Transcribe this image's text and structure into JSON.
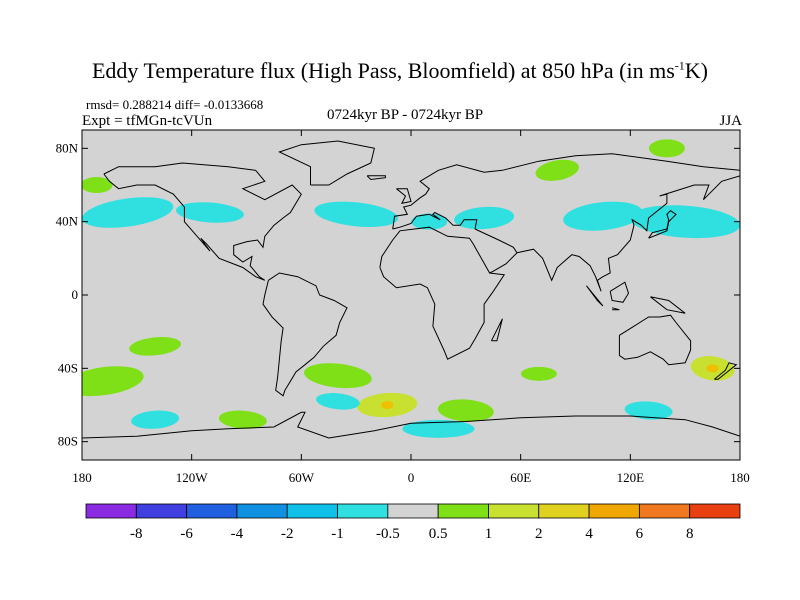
{
  "title": {
    "main": "Eddy Temperature flux (High Pass, Bloomfield) at 850 hPa (in ms",
    "exp": "-1",
    "tail": "K)"
  },
  "stats": "rmsd= 0.288214 diff= -0.0133668",
  "expt": "Expt = tfMGn-tcVUn",
  "period": "0724kyr BP - 0724kyr BP",
  "season": "JJA",
  "axes": {
    "y_ticks": [
      {
        "label": "80N",
        "lat": 80
      },
      {
        "label": "40N",
        "lat": 40
      },
      {
        "label": "0",
        "lat": 0
      },
      {
        "label": "40S",
        "lat": -40
      },
      {
        "label": "80S",
        "lat": -80
      }
    ],
    "x_ticks": [
      {
        "label": "180",
        "lon": -180
      },
      {
        "label": "120W",
        "lon": -120
      },
      {
        "label": "60W",
        "lon": -60
      },
      {
        "label": "0",
        "lon": 0
      },
      {
        "label": "60E",
        "lon": 60
      },
      {
        "label": "120E",
        "lon": 120
      },
      {
        "label": "180",
        "lon": 180
      }
    ],
    "lat_range": [
      -90,
      90
    ],
    "lon_range": [
      -180,
      180
    ]
  },
  "colors": {
    "background_field": "#d3d3d3",
    "neg_small": "#30e0e0",
    "neg_mid": "#1ec8f0",
    "pos_small": "#7fe018",
    "pos_mid": "#c8e030",
    "pos_high": "#f0c000",
    "coast": "#000000"
  },
  "colorbar": {
    "colors": [
      "#8a2be2",
      "#4040e0",
      "#2060e0",
      "#1090e0",
      "#10c0e8",
      "#30e0e0",
      "#d3d3d3",
      "#7fe018",
      "#c8e030",
      "#e0d020",
      "#f0a800",
      "#f07820",
      "#e84010"
    ],
    "labels": [
      "-8",
      "-6",
      "-4",
      "-2",
      "-1",
      "-0.5",
      "0.5",
      "1",
      "2",
      "4",
      "6",
      "8"
    ]
  },
  "chart_data": {
    "type": "heatmap",
    "title": "Eddy Temperature flux (High Pass, Bloomfield) at 850 hPa (in ms-1K)",
    "levels": [
      -8,
      -6,
      -4,
      -2,
      -1,
      -0.5,
      0.5,
      1,
      2,
      4,
      6,
      8
    ],
    "regions": [
      {
        "lon": -155,
        "lat": 45,
        "value": -0.7
      },
      {
        "lon": -110,
        "lat": 45,
        "value": -0.7
      },
      {
        "lon": -30,
        "lat": 44,
        "value": -0.7
      },
      {
        "lon": 10,
        "lat": 40,
        "value": -0.7
      },
      {
        "lon": 40,
        "lat": 42,
        "value": -0.7
      },
      {
        "lon": 105,
        "lat": 43,
        "value": -0.7
      },
      {
        "lon": 150,
        "lat": 40,
        "value": -0.7
      },
      {
        "lon": 80,
        "lat": 68,
        "value": 0.7
      },
      {
        "lon": 140,
        "lat": 80,
        "value": 0.7
      },
      {
        "lon": -172,
        "lat": 60,
        "value": 0.7
      },
      {
        "lon": -140,
        "lat": -28,
        "value": 0.7
      },
      {
        "lon": -168,
        "lat": -47,
        "value": 0.7
      },
      {
        "lon": -92,
        "lat": -68,
        "value": 0.7
      },
      {
        "lon": -40,
        "lat": -44,
        "value": 0.7
      },
      {
        "lon": -13,
        "lat": -60,
        "value": 1.5
      },
      {
        "lon": 30,
        "lat": -63,
        "value": 0.7
      },
      {
        "lon": 70,
        "lat": -43,
        "value": 0.7
      },
      {
        "lon": 165,
        "lat": -40,
        "value": 1.5
      },
      {
        "lon": -140,
        "lat": -68,
        "value": -0.7
      },
      {
        "lon": -40,
        "lat": -58,
        "value": -0.7
      },
      {
        "lon": 15,
        "lat": -73,
        "value": -0.7
      },
      {
        "lon": 130,
        "lat": -63,
        "value": -0.7
      }
    ]
  }
}
